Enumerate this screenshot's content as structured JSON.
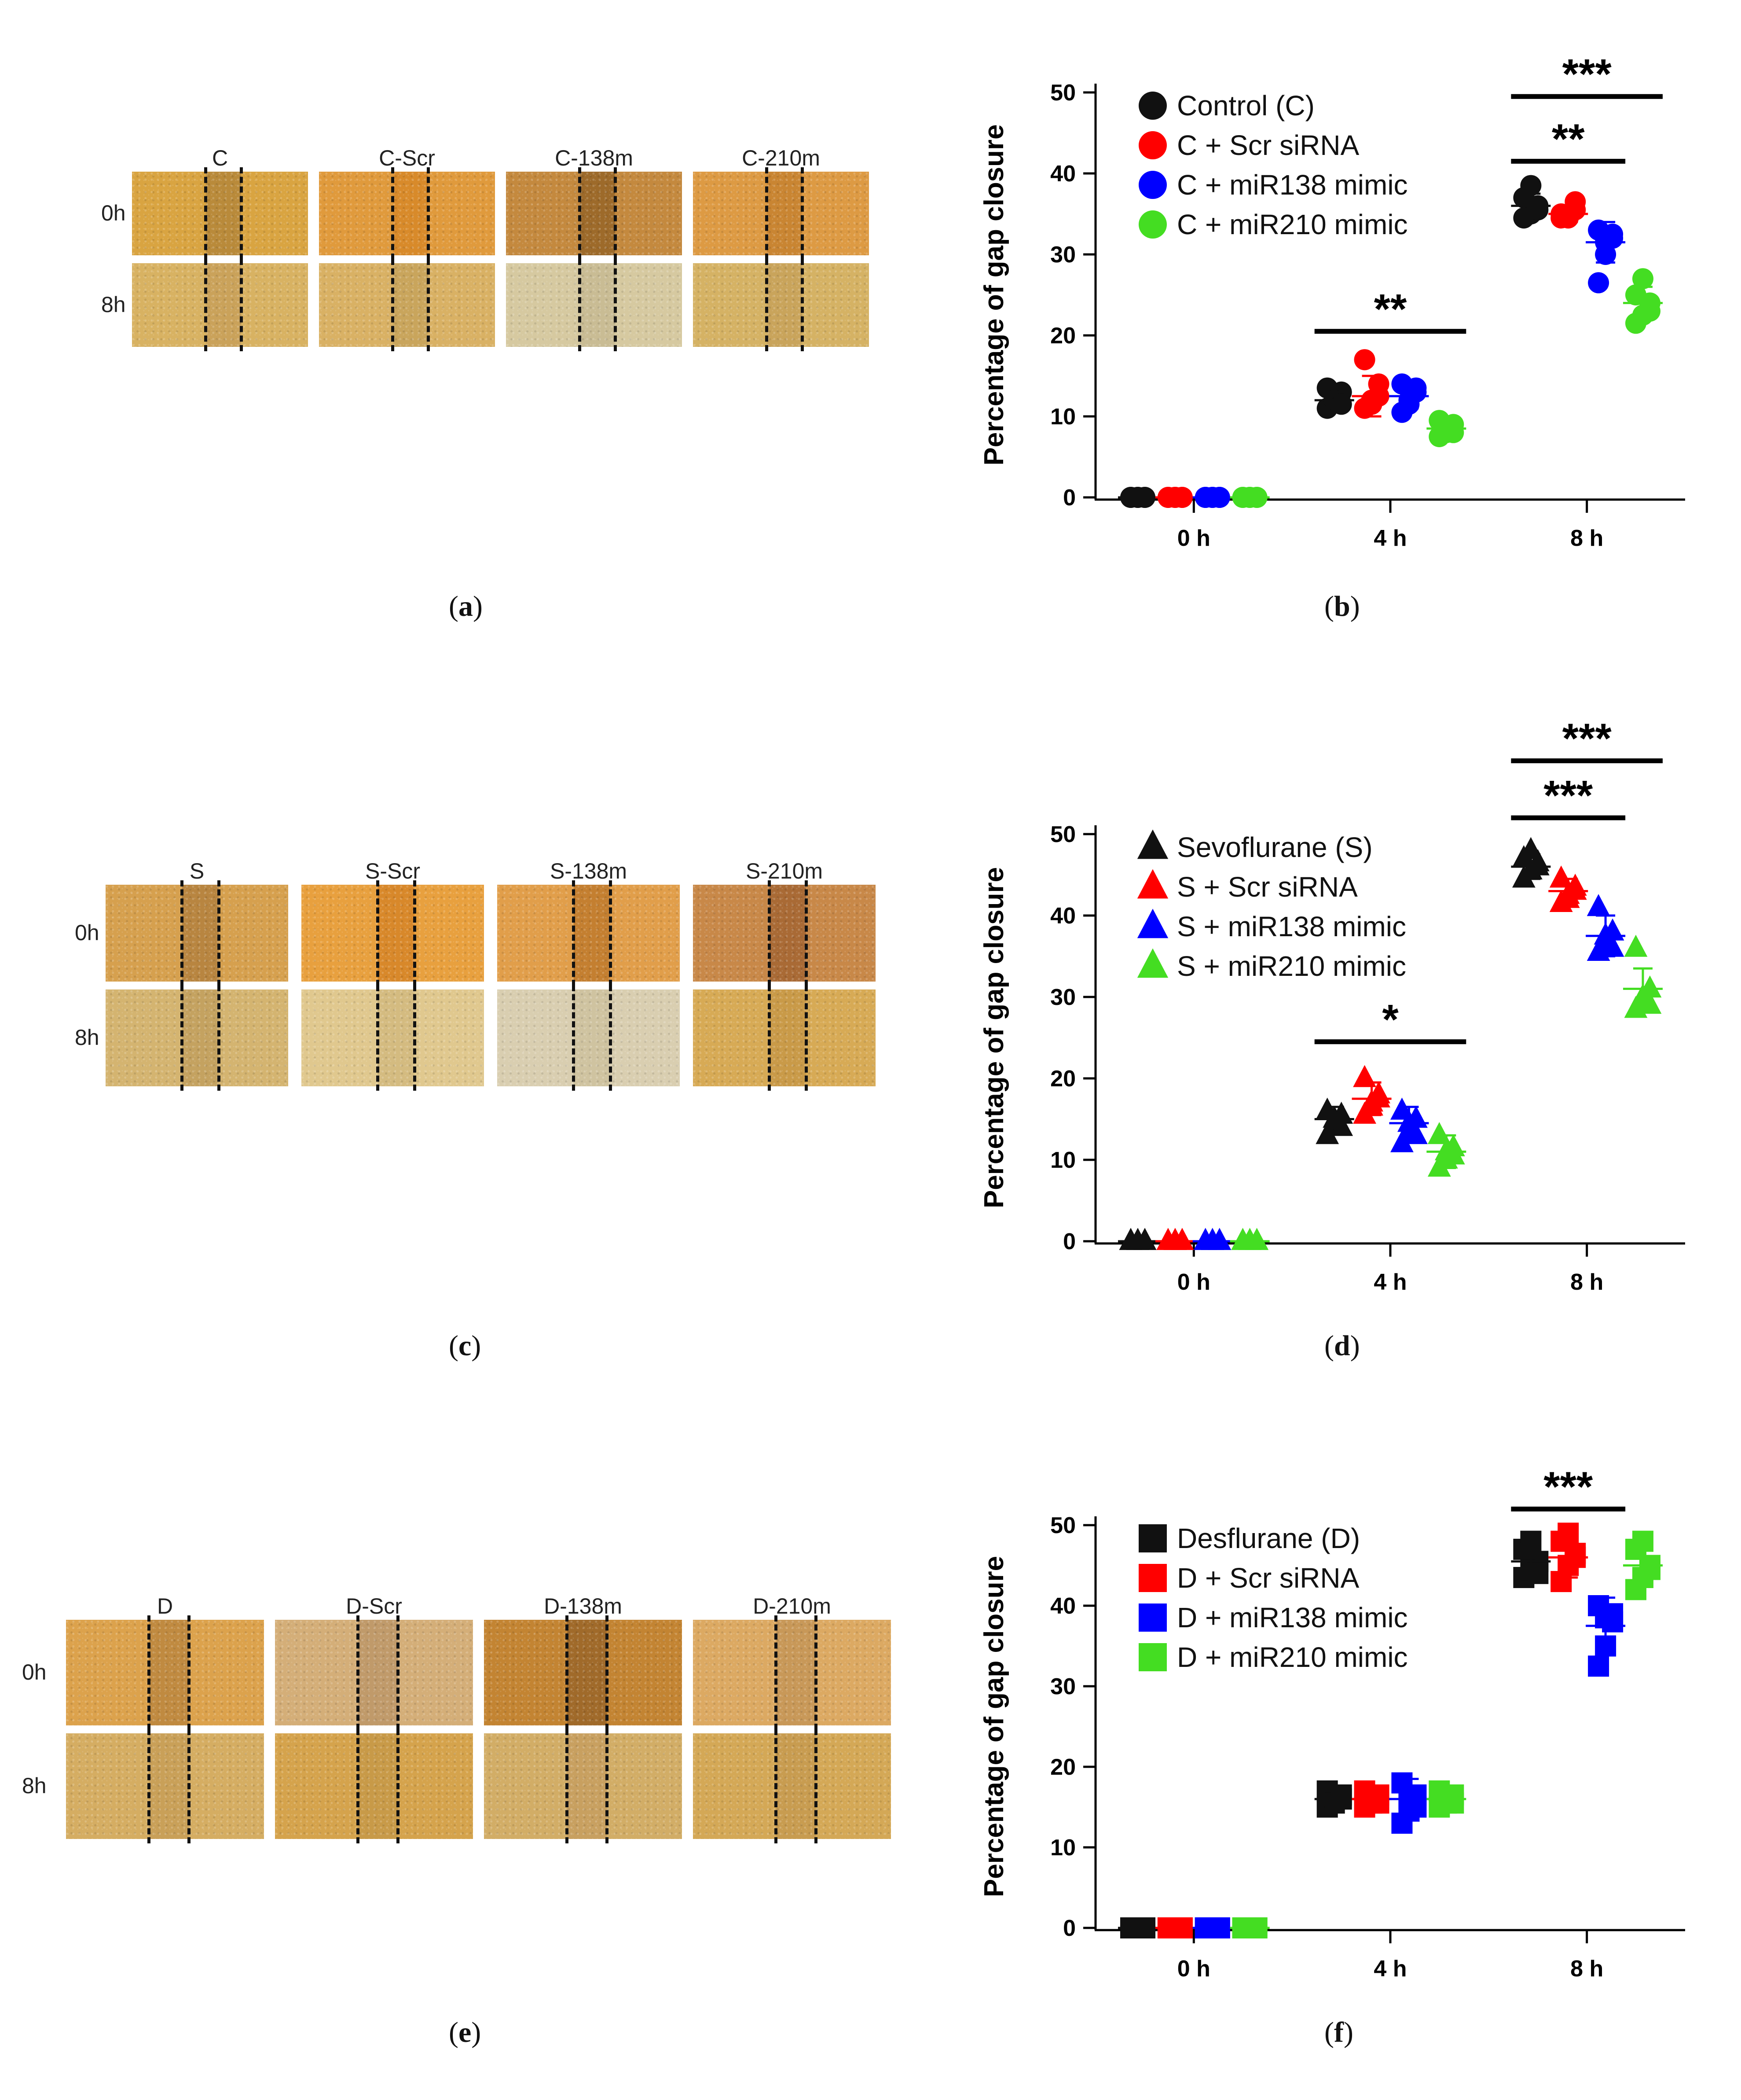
{
  "image_panels": [
    {
      "id": "a",
      "caption": "a",
      "columns": [
        "C",
        "C-Scr",
        "C-138m",
        "C-210m"
      ],
      "rows": [
        "0h",
        "8h"
      ],
      "tile_colors": [
        [
          "#d9a441",
          "#e09a3c",
          "#c4893e",
          "#dd9a43"
        ],
        [
          "#d8b262",
          "#d9b164",
          "#d6c9a0",
          "#d5b264"
        ]
      ],
      "gap_colors": [
        [
          "#b98a3a",
          "#d88a2a",
          "#9d6a2a",
          "#c98532"
        ],
        [
          "#caa25a",
          "#c9a55c",
          "#c9bc94",
          "#c9a45b"
        ]
      ]
    },
    {
      "id": "c",
      "caption": "c",
      "columns": [
        "S",
        "S-Scr",
        "S-138m",
        "S-210m"
      ],
      "rows": [
        "0h",
        "8h"
      ],
      "tile_colors": [
        [
          "#d6a04e",
          "#e8a03e",
          "#e19e4a",
          "#c88848"
        ],
        [
          "#d4b470",
          "#e0c88e",
          "#d9ceb0",
          "#d7aa55"
        ]
      ],
      "gap_colors": [
        [
          "#b88540",
          "#d8882a",
          "#c47f30",
          "#a96a35"
        ],
        [
          "#c4a260",
          "#d4bb80",
          "#cfc3a0",
          "#c99a48"
        ]
      ]
    },
    {
      "id": "e",
      "caption": "e",
      "columns": [
        "D",
        "D-Scr",
        "D-138m",
        "D-210m"
      ],
      "rows": [
        "0h",
        "8h"
      ],
      "tile_colors": [
        [
          "#dca24c",
          "#d4ae78",
          "#c38432",
          "#dca962"
        ],
        [
          "#d5ad62",
          "#d5a34c",
          "#d2ad66",
          "#d4a856"
        ]
      ],
      "gap_colors": [
        [
          "#c08a40",
          "#c09a6a",
          "#a06a2a",
          "#c89858"
        ],
        [
          "#c9a058",
          "#c89a48",
          "#c8a060",
          "#c89c50"
        ]
      ]
    }
  ],
  "chart_data": [
    {
      "id": "b",
      "caption": "b",
      "type": "scatter",
      "marker": "circle",
      "ylabel": "Percentage of gap closure",
      "xlabel": "",
      "categories": [
        "0 h",
        "4 h",
        "8 h"
      ],
      "yticks": [
        0,
        10,
        20,
        30,
        40,
        50
      ],
      "ylim": [
        0,
        50
      ],
      "legend": "top-left",
      "series": [
        {
          "name": "Control (C)",
          "color": "#111111",
          "means": [
            0,
            12,
            36
          ],
          "sd": [
            0,
            1,
            1.5
          ],
          "points": [
            [
              0,
              0,
              0,
              0,
              0,
              0
            ],
            [
              11,
              12,
              13,
              13.5,
              12,
              11.5
            ],
            [
              34.5,
              35,
              36,
              37,
              38.5,
              35.5
            ]
          ]
        },
        {
          "name": "C + Scr siRNA",
          "color": "#ff0000",
          "means": [
            0,
            12.5,
            35
          ],
          "sd": [
            0,
            2.5,
            1
          ],
          "points": [
            [
              0,
              0,
              0,
              0,
              0,
              0
            ],
            [
              11,
              12,
              14,
              17,
              11.5,
              12.5
            ],
            [
              34.5,
              35,
              36.5,
              35,
              34.5,
              35.5
            ]
          ]
        },
        {
          "name": "C + miR138 mimic",
          "color": "#0000ff",
          "means": [
            0,
            12.5,
            31.5
          ],
          "sd": [
            0,
            1.5,
            2.5
          ],
          "points": [
            [
              0,
              0,
              0,
              0,
              0,
              0
            ],
            [
              10.5,
              12,
              13.5,
              14,
              11.5,
              13
            ],
            [
              26.5,
              30,
              32,
              33,
              31.5,
              32.5
            ]
          ]
        },
        {
          "name": "C + miR210 mimic",
          "color": "#44dd22",
          "means": [
            0,
            8.5,
            24
          ],
          "sd": [
            0,
            1,
            2
          ],
          "points": [
            [
              0,
              0,
              0,
              0,
              0,
              0
            ],
            [
              7.5,
              8,
              9,
              9.5,
              8.5,
              8
            ],
            [
              21.5,
              22.5,
              24,
              25,
              27,
              23
            ]
          ]
        }
      ],
      "significance": [
        {
          "label": "***",
          "from": 2,
          "series_from": 0,
          "series_to": 3,
          "y": 49.5
        },
        {
          "label": "**",
          "from": 2,
          "series_from": 0,
          "series_to": 2,
          "y": 41.5
        },
        {
          "label": "**",
          "from": 1,
          "series_from": 0,
          "series_to": 3,
          "y": 20.5
        }
      ]
    },
    {
      "id": "d",
      "caption": "d",
      "type": "scatter",
      "marker": "triangle",
      "ylabel": "Percentage of gap closure",
      "xlabel": "",
      "categories": [
        "0 h",
        "4 h",
        "8 h"
      ],
      "yticks": [
        0,
        10,
        20,
        30,
        40,
        50
      ],
      "ylim": [
        0,
        50
      ],
      "legend": "top-left",
      "series": [
        {
          "name": "Sevoflurane (S)",
          "color": "#111111",
          "means": [
            0,
            15,
            46
          ],
          "sd": [
            0,
            1.5,
            1.5
          ],
          "points": [
            [
              0,
              0,
              0,
              0,
              0,
              0
            ],
            [
              13,
              14.5,
              15.5,
              16,
              15,
              14
            ],
            [
              44.5,
              45.5,
              46,
              47,
              48,
              46.5
            ]
          ]
        },
        {
          "name": "S + Scr siRNA",
          "color": "#ff0000",
          "means": [
            0,
            17.5,
            43
          ],
          "sd": [
            0,
            2,
            1.5
          ],
          "points": [
            [
              0,
              0,
              0,
              0,
              0,
              0
            ],
            [
              15.5,
              16.5,
              18,
              20,
              17,
              17.5
            ],
            [
              41.5,
              42.5,
              43.5,
              44.5,
              42,
              43
            ]
          ]
        },
        {
          "name": "S + miR138 mimic",
          "color": "#0000ff",
          "means": [
            0,
            14.5,
            37.5
          ],
          "sd": [
            0,
            2,
            2.5
          ],
          "points": [
            [
              0,
              0,
              0,
              0,
              0,
              0
            ],
            [
              12,
              13.5,
              15,
              16,
              14.5,
              13
            ],
            [
              35.5,
              36.5,
              38,
              41,
              37.5,
              36
            ]
          ]
        },
        {
          "name": "S + miR210 mimic",
          "color": "#44dd22",
          "means": [
            0,
            11,
            31
          ],
          "sd": [
            0,
            2,
            2.5
          ],
          "points": [
            [
              0,
              0,
              0,
              0,
              0,
              0
            ],
            [
              9,
              10,
              11.5,
              13,
              11,
              10.5
            ],
            [
              28.5,
              29.5,
              31,
              36,
              30,
              29
            ]
          ]
        }
      ],
      "significance": [
        {
          "label": "***",
          "from": 2,
          "series_from": 0,
          "series_to": 3,
          "y": 59
        },
        {
          "label": "***",
          "from": 2,
          "series_from": 0,
          "series_to": 2,
          "y": 52
        },
        {
          "label": "*",
          "from": 1,
          "series_from": 0,
          "series_to": 3,
          "y": 24.5
        }
      ]
    },
    {
      "id": "f",
      "caption": "f",
      "type": "scatter",
      "marker": "square",
      "ylabel": "Percentage of gap closure",
      "xlabel": "",
      "categories": [
        "0 h",
        "4 h",
        "8 h"
      ],
      "yticks": [
        0,
        10,
        20,
        30,
        40,
        50
      ],
      "ylim": [
        0,
        50
      ],
      "legend": "top-left",
      "series": [
        {
          "name": "Desflurane (D)",
          "color": "#111111",
          "means": [
            0,
            16,
            45.5
          ],
          "sd": [
            0,
            1,
            2.5
          ],
          "points": [
            [
              0,
              0,
              0,
              0,
              0,
              0
            ],
            [
              15,
              16,
              16.5,
              17,
              15.5,
              16
            ],
            [
              43.5,
              44.5,
              45.5,
              47,
              48,
              44
            ]
          ]
        },
        {
          "name": "D + Scr siRNA",
          "color": "#ff0000",
          "means": [
            0,
            16,
            46
          ],
          "sd": [
            0,
            1,
            2.5
          ],
          "points": [
            [
              0,
              0,
              0,
              0,
              0,
              0
            ],
            [
              15,
              15.5,
              16.5,
              17,
              16,
              15.5
            ],
            [
              43,
              45,
              46,
              48,
              49,
              46.5
            ]
          ]
        },
        {
          "name": "D + miR138 mimic",
          "color": "#0000ff",
          "means": [
            0,
            16,
            37.5
          ],
          "sd": [
            0,
            2.5,
            3.5
          ],
          "points": [
            [
              0,
              0,
              0,
              0,
              0,
              0
            ],
            [
              13,
              14.5,
              16.5,
              18,
              16,
              15
            ],
            [
              32.5,
              35,
              38,
              40,
              38.5,
              39
            ]
          ]
        },
        {
          "name": "D + miR210 mimic",
          "color": "#44dd22",
          "means": [
            0,
            16,
            45
          ],
          "sd": [
            0,
            1,
            2
          ],
          "points": [
            [
              0,
              0,
              0,
              0,
              0,
              0
            ],
            [
              15,
              15.5,
              16.5,
              17,
              16,
              15.5
            ],
            [
              42,
              43.5,
              45,
              47,
              48,
              44.5
            ]
          ]
        }
      ],
      "significance": [
        {
          "label": "***",
          "from": 2,
          "series_from": 0,
          "series_to": 2,
          "y": 52
        }
      ]
    }
  ]
}
